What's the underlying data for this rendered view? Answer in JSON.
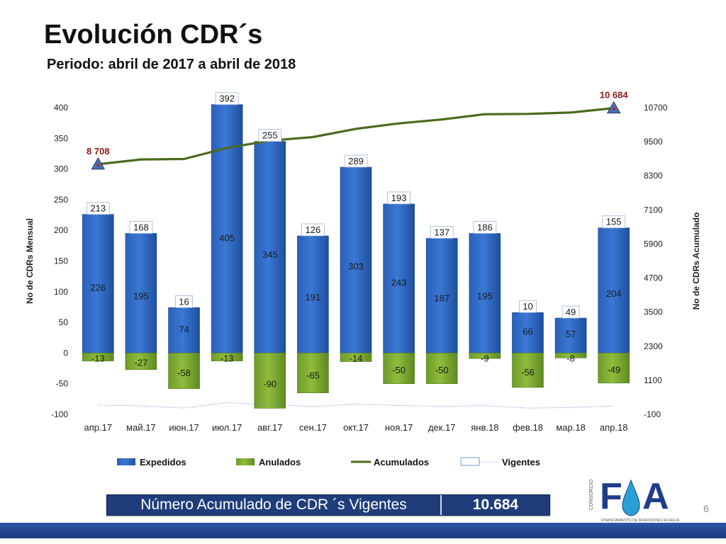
{
  "title": "Evolución CDR´s",
  "subtitle": "Periodo: abril de 2017 a  abril de 2018",
  "summary": {
    "label": "Número Acumulado de CDR ´s Vigentes",
    "value": "10.684"
  },
  "logo": {
    "letters": "FA",
    "vertical": "CONSORCIO",
    "tagline": "FINANCIAMIENTO DE INVERSIONES EN AGUA"
  },
  "page_number": "6",
  "colors": {
    "expedidos": "#3a78d4",
    "anulados": "#8fbc3c",
    "acumulados": "#4a6b1f",
    "vigentes": "#6f9bd1",
    "marker": "#4a6fb5",
    "marker_label": "#8b1a1a",
    "band": "#1f3d7a"
  },
  "chart_data": {
    "type": "bar",
    "categories": [
      "апр.17",
      "май.17",
      "июн.17",
      "июл.17",
      "авг.17",
      "сен.17",
      "окт.17",
      "ноя.17",
      "дек.17",
      "янв.18",
      "фев.18",
      "мар.18",
      "апр.18"
    ],
    "series": [
      {
        "name": "Expedidos",
        "type": "bar",
        "axis": "left",
        "values": [
          226,
          195,
          74,
          405,
          345,
          191,
          303,
          243,
          187,
          195,
          66,
          57,
          204
        ]
      },
      {
        "name": "Anulados",
        "type": "bar",
        "axis": "left",
        "values": [
          -13,
          -27,
          -58,
          -13,
          -90,
          -65,
          -14,
          -50,
          -50,
          -9,
          -56,
          -8,
          -49
        ]
      },
      {
        "name": "Acumulados",
        "type": "line",
        "axis": "right",
        "values": [
          8708,
          8876,
          8892,
          9284,
          9539,
          9665,
          9954,
          10147,
          10284,
          10470,
          10480,
          10529,
          10684
        ]
      },
      {
        "name": "Vigentes",
        "type": "line",
        "axis": "left",
        "values": [
          213,
          168,
          16,
          392,
          255,
          126,
          289,
          193,
          137,
          186,
          10,
          49,
          155
        ],
        "hidden_line": true
      }
    ],
    "labels_vigentes": [
      "213",
      "168",
      "16",
      "392",
      "255",
      "126",
      "289",
      "193",
      "137",
      "186",
      "10",
      "49",
      "155"
    ],
    "marker_labels": [
      {
        "index": 0,
        "text": "8 708"
      },
      {
        "index": 12,
        "text": "10 684"
      }
    ],
    "ylabel": "No de CDRs Mensual",
    "y2label": "No de CDRs Acumulado",
    "ylim": [
      -100,
      400
    ],
    "y2lim": [
      -100,
      10700
    ],
    "yticks": [
      -100,
      -50,
      0,
      50,
      100,
      150,
      200,
      250,
      300,
      350,
      400
    ],
    "y2ticks": [
      -100,
      1100,
      2300,
      3500,
      4700,
      5900,
      7100,
      8300,
      9500,
      10700
    ],
    "legend": {
      "position": "bottom"
    },
    "grid": false
  }
}
